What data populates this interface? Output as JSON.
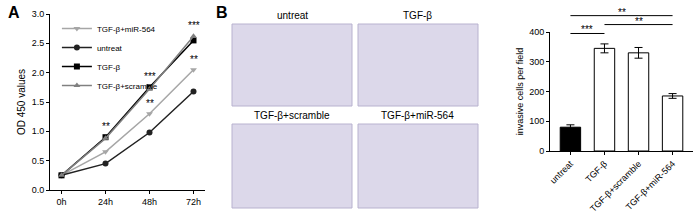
{
  "figure": {
    "panel_labels": [
      "A",
      "B"
    ],
    "micrograph_labels": [
      "untreat",
      "TGF-β",
      "TGF-β+scramble",
      "TGF-β+miR-564"
    ]
  },
  "chart_data": [
    {
      "type": "line",
      "y_label": "OD 450 values",
      "categories": [
        "0h",
        "24h",
        "48h",
        "72h"
      ],
      "series": [
        {
          "name": "TGF-β+miR-564",
          "color": "#a6a6a6",
          "marker": "triangle-down",
          "values": [
            0.25,
            0.65,
            1.3,
            2.05
          ]
        },
        {
          "name": "untreat",
          "color": "#222222",
          "marker": "circle",
          "values": [
            0.25,
            0.45,
            0.98,
            1.68
          ]
        },
        {
          "name": "TGF-β",
          "color": "#000000",
          "marker": "square",
          "values": [
            0.25,
            0.9,
            1.75,
            2.55
          ]
        },
        {
          "name": "TGF-β+scramble",
          "color": "#808080",
          "marker": "triangle-up",
          "values": [
            0.25,
            0.88,
            1.72,
            2.62
          ]
        }
      ],
      "ylim": [
        0,
        3
      ],
      "yticks": [
        {
          "value": 0,
          "label": "0.0"
        },
        {
          "value": 0.5,
          "label": "0.5"
        },
        {
          "value": 1,
          "label": "1.0"
        },
        {
          "value": 1.5,
          "label": "1.5"
        },
        {
          "value": 2,
          "label": "2.0"
        },
        {
          "value": 2.5,
          "label": "2.5"
        },
        {
          "value": 3,
          "label": "3.0"
        }
      ],
      "grid": false,
      "legend": "upper left",
      "annotations": [
        {
          "text": "**",
          "x": "24h",
          "y": 0.95
        },
        {
          "text": "***",
          "x": "48h",
          "y": 1.8
        },
        {
          "text": "**",
          "x": "48h",
          "y": 1.35
        },
        {
          "text": "***",
          "x": "72h",
          "y": 2.68
        },
        {
          "text": "**",
          "x": "72h",
          "y": 2.1
        }
      ]
    },
    {
      "type": "bar",
      "y_label": "invasive cells per field",
      "categories": [
        "untreat",
        "TGF-β",
        "TGF-β+scramble",
        "TGF-β+miR-564"
      ],
      "values": [
        80,
        345,
        330,
        185
      ],
      "errors": [
        8,
        15,
        18,
        8
      ],
      "colors": [
        "#000000",
        "#ffffff",
        "#ffffff",
        "#ffffff"
      ],
      "ylim": [
        0,
        400
      ],
      "yticks": [
        0,
        100,
        200,
        300,
        400
      ],
      "grid": false,
      "annotations": [
        {
          "text": "***",
          "from": "untreat",
          "to": "TGF-β",
          "y": 395
        },
        {
          "text": "**",
          "from": "TGF-β",
          "to": "TGF-β+miR-564",
          "y": 425
        },
        {
          "text": "**",
          "from": "untreat",
          "to": "TGF-β+miR-564",
          "y": 455
        }
      ]
    }
  ]
}
